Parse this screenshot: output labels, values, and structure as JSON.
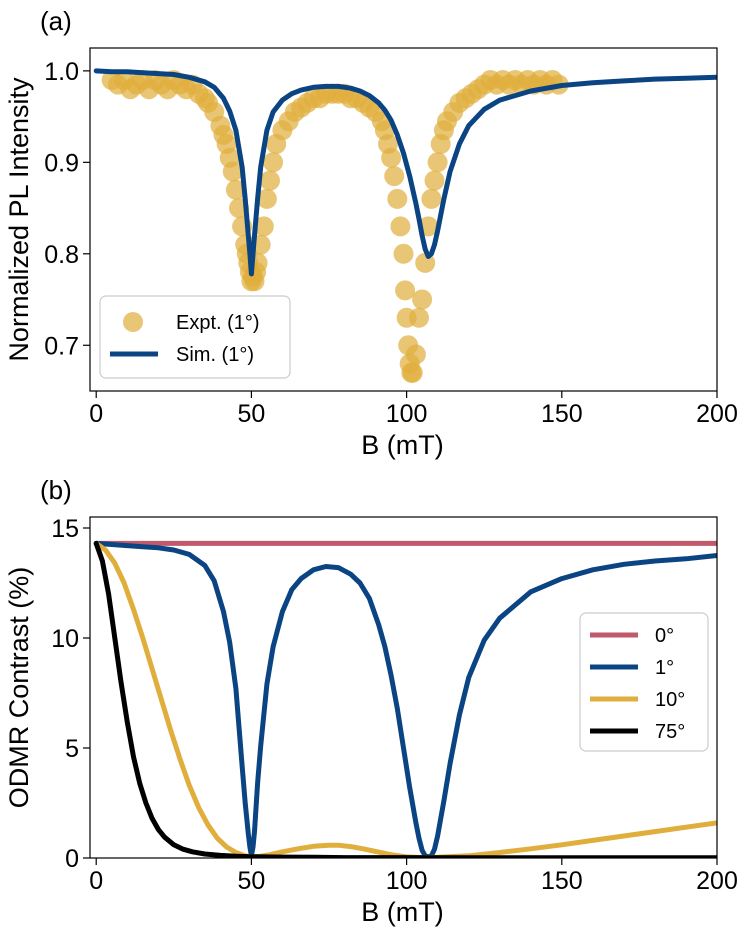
{
  "chart_data": [
    {
      "panel_label": "(a)",
      "type": "line",
      "xlabel": "B (mT)",
      "ylabel": "Normalized PL Intensity",
      "xlim": [
        -2,
        200
      ],
      "ylim": [
        0.65,
        1.025
      ],
      "xticks": [
        "0",
        "50",
        "100",
        "150",
        "200"
      ],
      "yticks": [
        "0.7",
        "0.8",
        "0.9",
        "1.0"
      ],
      "xtick_values": [
        0,
        50,
        100,
        150,
        200
      ],
      "ytick_values": [
        0.7,
        0.8,
        0.9,
        1.0
      ],
      "legend_position": "lower-left",
      "series": [
        {
          "name": "Expt. (1°)",
          "kind": "scatter",
          "color": "#e0ae3c",
          "x": [
            5,
            7,
            9,
            11,
            13,
            15,
            17,
            19,
            21,
            23,
            25,
            27,
            29,
            31,
            33,
            35,
            36,
            38,
            40,
            41,
            42,
            43,
            44,
            45,
            46,
            47,
            48,
            48.5,
            49,
            49.5,
            50,
            50.5,
            51,
            51.5,
            52,
            53,
            54,
            55,
            56,
            57,
            58,
            60,
            62,
            64,
            66,
            68,
            70,
            72,
            74,
            76,
            78,
            80,
            82,
            84,
            86,
            88,
            90,
            92,
            93,
            94,
            95,
            96,
            97,
            98,
            99,
            99.5,
            100,
            100.5,
            101,
            101.5,
            102,
            103,
            104,
            105,
            106,
            107,
            108,
            109,
            110,
            111,
            112,
            113,
            115,
            117,
            119,
            121,
            123,
            125,
            127,
            129,
            131,
            133,
            135,
            137,
            139,
            141,
            143,
            145,
            147,
            149
          ],
          "y": [
            0.99,
            0.985,
            0.99,
            0.98,
            0.985,
            0.99,
            0.98,
            0.99,
            0.985,
            0.98,
            0.99,
            0.985,
            0.98,
            0.985,
            0.975,
            0.97,
            0.965,
            0.955,
            0.94,
            0.93,
            0.92,
            0.905,
            0.89,
            0.87,
            0.85,
            0.83,
            0.81,
            0.8,
            0.79,
            0.78,
            0.77,
            0.775,
            0.77,
            0.78,
            0.79,
            0.81,
            0.83,
            0.86,
            0.88,
            0.9,
            0.92,
            0.935,
            0.945,
            0.955,
            0.96,
            0.965,
            0.97,
            0.97,
            0.975,
            0.975,
            0.975,
            0.975,
            0.97,
            0.97,
            0.965,
            0.96,
            0.955,
            0.945,
            0.935,
            0.92,
            0.905,
            0.885,
            0.86,
            0.83,
            0.8,
            0.76,
            0.73,
            0.7,
            0.68,
            0.67,
            0.67,
            0.69,
            0.73,
            0.75,
            0.79,
            0.83,
            0.86,
            0.88,
            0.9,
            0.92,
            0.935,
            0.945,
            0.955,
            0.965,
            0.97,
            0.975,
            0.98,
            0.985,
            0.99,
            0.985,
            0.99,
            0.985,
            0.99,
            0.985,
            0.99,
            0.985,
            0.99,
            0.985,
            0.99,
            0.985
          ]
        },
        {
          "name": "Sim. (1°)",
          "kind": "line",
          "color": "#0b4483",
          "x": [
            0,
            5,
            10,
            15,
            20,
            25,
            30,
            35,
            38,
            41,
            43,
            45,
            47,
            48,
            49,
            49.5,
            50,
            50.5,
            51,
            52,
            53,
            55,
            57,
            60,
            63,
            66,
            70,
            74,
            78,
            82,
            85,
            88,
            91,
            93,
            95,
            97,
            99,
            101,
            103,
            104,
            105,
            106,
            107,
            108,
            109,
            110,
            112,
            114,
            117,
            120,
            125,
            130,
            140,
            150,
            160,
            170,
            180,
            190,
            200
          ],
          "y": [
            1.0,
            0.999,
            0.999,
            0.998,
            0.997,
            0.996,
            0.993,
            0.988,
            0.982,
            0.97,
            0.956,
            0.935,
            0.895,
            0.86,
            0.82,
            0.8,
            0.778,
            0.8,
            0.82,
            0.86,
            0.895,
            0.935,
            0.955,
            0.968,
            0.975,
            0.979,
            0.982,
            0.983,
            0.983,
            0.981,
            0.978,
            0.973,
            0.965,
            0.957,
            0.946,
            0.93,
            0.91,
            0.885,
            0.855,
            0.838,
            0.82,
            0.805,
            0.797,
            0.8,
            0.81,
            0.825,
            0.86,
            0.89,
            0.92,
            0.94,
            0.958,
            0.968,
            0.978,
            0.984,
            0.987,
            0.989,
            0.991,
            0.992,
            0.993
          ]
        }
      ]
    },
    {
      "panel_label": "(b)",
      "type": "line",
      "xlabel": "B (mT)",
      "ylabel": "ODMR Contrast (%)",
      "xlim": [
        -2,
        200
      ],
      "ylim": [
        0,
        15.5
      ],
      "xticks": [
        "0",
        "50",
        "100",
        "150",
        "200"
      ],
      "yticks": [
        "0",
        "5",
        "10",
        "15"
      ],
      "xtick_values": [
        0,
        50,
        100,
        150,
        200
      ],
      "ytick_values": [
        0,
        5,
        10,
        15
      ],
      "legend_position": "center-right",
      "series": [
        {
          "name": "0°",
          "color": "#c05a6a",
          "x": [
            0,
            200
          ],
          "y": [
            14.3,
            14.3
          ]
        },
        {
          "name": "1°",
          "color": "#0b4483",
          "x": [
            0,
            5,
            10,
            15,
            20,
            25,
            30,
            35,
            38,
            41,
            43,
            45,
            47,
            48,
            49,
            49.5,
            50,
            50.5,
            51,
            52,
            53,
            55,
            57,
            60,
            63,
            66,
            70,
            74,
            78,
            82,
            85,
            88,
            91,
            93,
            95,
            97,
            99,
            101,
            103,
            104,
            105,
            106,
            107,
            108,
            109,
            110,
            112,
            114,
            117,
            120,
            125,
            130,
            140,
            150,
            160,
            170,
            180,
            190,
            200
          ],
          "y": [
            14.3,
            14.25,
            14.2,
            14.15,
            14.1,
            14.0,
            13.8,
            13.3,
            12.6,
            11.2,
            9.8,
            7.7,
            4.2,
            2.5,
            1.1,
            0.5,
            0.1,
            0.5,
            1.2,
            3.4,
            5.1,
            7.9,
            9.6,
            11.2,
            12.2,
            12.7,
            13.1,
            13.25,
            13.2,
            12.9,
            12.5,
            11.8,
            10.6,
            9.6,
            8.3,
            6.8,
            5.0,
            3.2,
            1.6,
            0.9,
            0.35,
            0.1,
            0.05,
            0.1,
            0.4,
            1.0,
            2.6,
            4.3,
            6.5,
            8.2,
            9.9,
            10.9,
            12.1,
            12.7,
            13.1,
            13.35,
            13.5,
            13.6,
            13.75
          ]
        },
        {
          "name": "10°",
          "color": "#e0ae3c",
          "x": [
            0,
            3,
            6,
            9,
            12,
            15,
            18,
            21,
            24,
            27,
            30,
            33,
            36,
            39,
            42,
            45,
            48,
            50,
            53,
            56,
            60,
            65,
            70,
            75,
            78,
            82,
            86,
            90,
            95,
            100,
            105,
            110,
            120,
            130,
            140,
            150,
            160,
            170,
            180,
            190,
            200
          ],
          "y": [
            14.3,
            14.0,
            13.4,
            12.5,
            11.3,
            10.0,
            8.6,
            7.2,
            5.8,
            4.5,
            3.3,
            2.3,
            1.5,
            0.9,
            0.5,
            0.25,
            0.1,
            0.05,
            0.08,
            0.15,
            0.28,
            0.42,
            0.53,
            0.58,
            0.58,
            0.52,
            0.42,
            0.3,
            0.15,
            0.05,
            0.02,
            0.03,
            0.1,
            0.25,
            0.42,
            0.6,
            0.8,
            1.0,
            1.2,
            1.4,
            1.6
          ]
        },
        {
          "name": "75°",
          "color": "#000000",
          "x": [
            0,
            2,
            4,
            6,
            8,
            10,
            12,
            14,
            16,
            18,
            20,
            22,
            25,
            28,
            31,
            35,
            40,
            45,
            50,
            60,
            70,
            80,
            100,
            120,
            150,
            200
          ],
          "y": [
            14.3,
            13.5,
            12.0,
            10.0,
            8.0,
            6.2,
            4.6,
            3.4,
            2.5,
            1.8,
            1.3,
            0.95,
            0.6,
            0.4,
            0.28,
            0.18,
            0.12,
            0.08,
            0.06,
            0.04,
            0.03,
            0.02,
            0.02,
            0.01,
            0.01,
            0.01
          ]
        }
      ]
    }
  ]
}
